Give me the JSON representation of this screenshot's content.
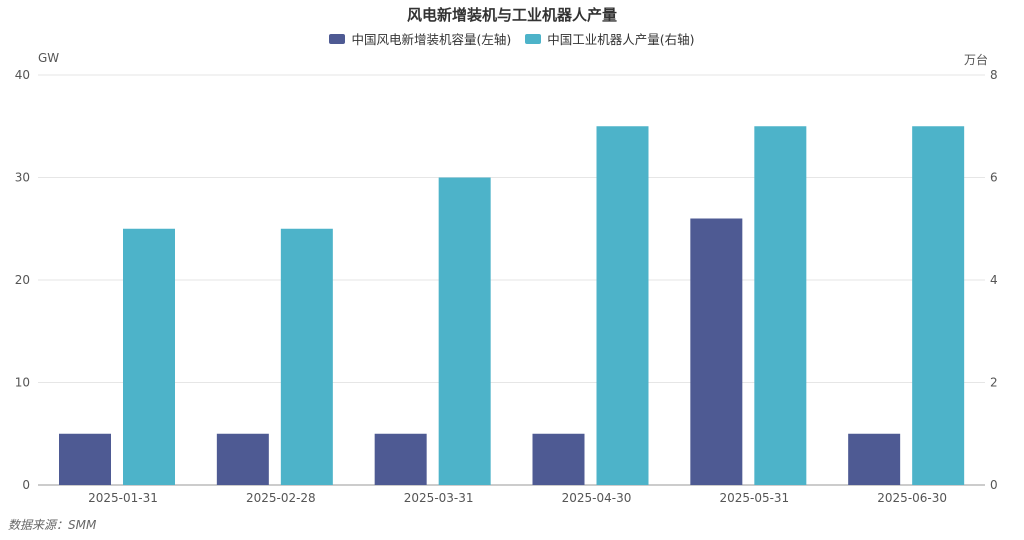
{
  "chart_data": {
    "type": "bar",
    "title": "风电新增装机与工业机器人产量",
    "categories": [
      "2025-01-31",
      "2025-02-28",
      "2025-03-31",
      "2025-04-30",
      "2025-05-31",
      "2025-06-30"
    ],
    "series": [
      {
        "name": "中国风电新增装机容量(左轴)",
        "axis": "left",
        "color": "#4e5a93",
        "values": [
          5,
          5,
          5,
          5,
          26,
          5
        ]
      },
      {
        "name": "中国工业机器人产量(右轴)",
        "axis": "right",
        "color": "#4db3c9",
        "values": [
          5,
          5,
          6,
          7,
          7,
          7
        ]
      }
    ],
    "y_left": {
      "label": "GW",
      "ylim": [
        0,
        40
      ],
      "ticks": [
        "0",
        "10",
        "20",
        "30",
        "40"
      ]
    },
    "y_right": {
      "label": "万台",
      "ylim": [
        0,
        8
      ],
      "ticks": [
        "0",
        "2",
        "4",
        "6",
        "8"
      ]
    },
    "grid": true,
    "legend_position": "top-center"
  },
  "source": "数据来源：SMM"
}
